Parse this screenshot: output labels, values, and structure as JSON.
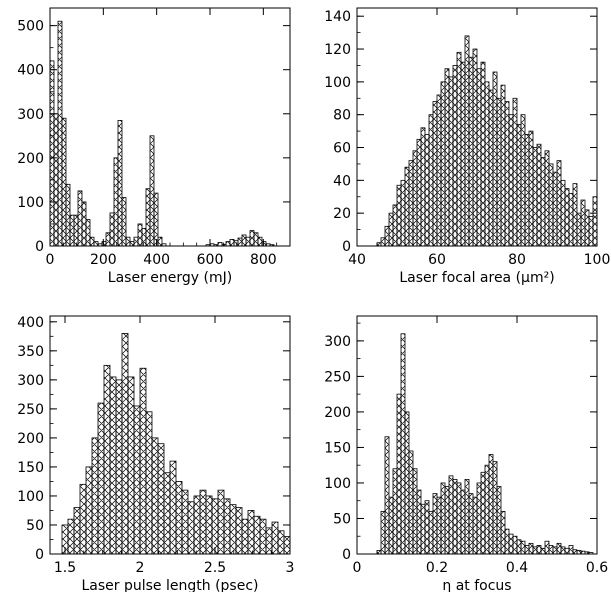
{
  "chart_data": [
    {
      "type": "bar",
      "xlabel": "Laser energy (mJ)",
      "ylabel": "",
      "xlim": [
        0,
        900
      ],
      "ylim": [
        0,
        540
      ],
      "xticks": [
        0,
        200,
        400,
        600,
        800
      ],
      "yticks": [
        0,
        100,
        200,
        300,
        400,
        500
      ],
      "bin_width": 15,
      "x": [
        0,
        15,
        30,
        45,
        60,
        75,
        90,
        105,
        120,
        135,
        150,
        165,
        180,
        195,
        210,
        225,
        240,
        255,
        270,
        285,
        300,
        315,
        330,
        345,
        360,
        375,
        390,
        405,
        420,
        435,
        450,
        465,
        480,
        495,
        510,
        525,
        540,
        555,
        570,
        585,
        600,
        615,
        630,
        645,
        660,
        675,
        690,
        705,
        720,
        735,
        750,
        765,
        780,
        795,
        810,
        825,
        840,
        855,
        870,
        885
      ],
      "values": [
        420,
        300,
        510,
        290,
        140,
        70,
        70,
        125,
        100,
        60,
        20,
        10,
        5,
        10,
        30,
        75,
        200,
        285,
        110,
        20,
        10,
        20,
        50,
        40,
        130,
        250,
        120,
        20,
        5,
        0,
        0,
        0,
        0,
        0,
        0,
        0,
        0,
        0,
        0,
        3,
        5,
        3,
        8,
        4,
        10,
        15,
        12,
        18,
        25,
        20,
        35,
        30,
        20,
        10,
        5,
        3,
        0,
        0,
        0,
        0
      ],
      "grid": false,
      "legend": "none"
    },
    {
      "type": "bar",
      "xlabel": "Laser focal area (μm²)",
      "ylabel": "",
      "xlim": [
        40,
        100
      ],
      "ylim": [
        0,
        145
      ],
      "xticks": [
        40,
        60,
        80,
        100
      ],
      "yticks": [
        0,
        20,
        40,
        60,
        80,
        100,
        120,
        140
      ],
      "bin_width": 1,
      "x": [
        40,
        41,
        42,
        43,
        44,
        45,
        46,
        47,
        48,
        49,
        50,
        51,
        52,
        53,
        54,
        55,
        56,
        57,
        58,
        59,
        60,
        61,
        62,
        63,
        64,
        65,
        66,
        67,
        68,
        69,
        70,
        71,
        72,
        73,
        74,
        75,
        76,
        77,
        78,
        79,
        80,
        81,
        82,
        83,
        84,
        85,
        86,
        87,
        88,
        89,
        90,
        91,
        92,
        93,
        94,
        95,
        96,
        97,
        98,
        99
      ],
      "values": [
        0,
        0,
        0,
        0,
        0,
        2,
        5,
        12,
        20,
        25,
        37,
        40,
        48,
        52,
        58,
        65,
        72,
        68,
        80,
        88,
        92,
        100,
        108,
        103,
        110,
        118,
        112,
        128,
        115,
        120,
        108,
        112,
        100,
        95,
        106,
        90,
        98,
        88,
        80,
        90,
        74,
        80,
        68,
        70,
        60,
        62,
        54,
        58,
        50,
        45,
        52,
        40,
        35,
        32,
        38,
        20,
        28,
        22,
        18,
        30
      ],
      "grid": false,
      "legend": "none"
    },
    {
      "type": "bar",
      "xlabel": "Laser pulse length (psec)",
      "ylabel": "",
      "xlim": [
        1.4,
        3.0
      ],
      "ylim": [
        0,
        410
      ],
      "xticks": [
        1.5,
        2,
        2.5,
        3
      ],
      "yticks": [
        0,
        50,
        100,
        150,
        200,
        250,
        300,
        350,
        400
      ],
      "bin_width": 0.04,
      "x": [
        1.48,
        1.52,
        1.56,
        1.6,
        1.64,
        1.68,
        1.72,
        1.76,
        1.8,
        1.84,
        1.88,
        1.92,
        1.96,
        2.0,
        2.04,
        2.08,
        2.12,
        2.16,
        2.2,
        2.24,
        2.28,
        2.32,
        2.36,
        2.4,
        2.44,
        2.48,
        2.52,
        2.56,
        2.6,
        2.64,
        2.68,
        2.72,
        2.76,
        2.8,
        2.84,
        2.88,
        2.92,
        2.96
      ],
      "values": [
        50,
        60,
        80,
        120,
        150,
        200,
        260,
        325,
        305,
        300,
        380,
        305,
        255,
        320,
        245,
        200,
        190,
        140,
        160,
        125,
        110,
        90,
        100,
        110,
        100,
        95,
        110,
        95,
        85,
        80,
        60,
        75,
        65,
        60,
        45,
        55,
        40,
        30
      ],
      "grid": false,
      "legend": "none"
    },
    {
      "type": "bar",
      "xlabel": "η at focus",
      "ylabel": "",
      "xlim": [
        0,
        0.6
      ],
      "ylim": [
        0,
        335
      ],
      "xticks": [
        0,
        0.2,
        0.4,
        0.6
      ],
      "yticks": [
        0,
        50,
        100,
        150,
        200,
        250,
        300
      ],
      "bin_width": 0.01,
      "x": [
        0.05,
        0.06,
        0.07,
        0.08,
        0.09,
        0.1,
        0.11,
        0.12,
        0.13,
        0.14,
        0.15,
        0.16,
        0.17,
        0.18,
        0.19,
        0.2,
        0.21,
        0.22,
        0.23,
        0.24,
        0.25,
        0.26,
        0.27,
        0.28,
        0.29,
        0.3,
        0.31,
        0.32,
        0.33,
        0.34,
        0.35,
        0.36,
        0.37,
        0.38,
        0.39,
        0.4,
        0.41,
        0.42,
        0.43,
        0.44,
        0.45,
        0.46,
        0.47,
        0.48,
        0.49,
        0.5,
        0.51,
        0.52,
        0.53,
        0.54,
        0.55,
        0.56,
        0.57,
        0.58
      ],
      "values": [
        5,
        60,
        165,
        80,
        120,
        225,
        310,
        200,
        145,
        120,
        90,
        70,
        75,
        60,
        85,
        80,
        100,
        95,
        110,
        105,
        100,
        90,
        105,
        85,
        80,
        100,
        115,
        125,
        140,
        130,
        95,
        60,
        35,
        28,
        25,
        20,
        18,
        12,
        15,
        10,
        12,
        8,
        18,
        12,
        10,
        15,
        10,
        8,
        12,
        6,
        5,
        4,
        3,
        2
      ],
      "grid": false,
      "legend": "none"
    }
  ]
}
